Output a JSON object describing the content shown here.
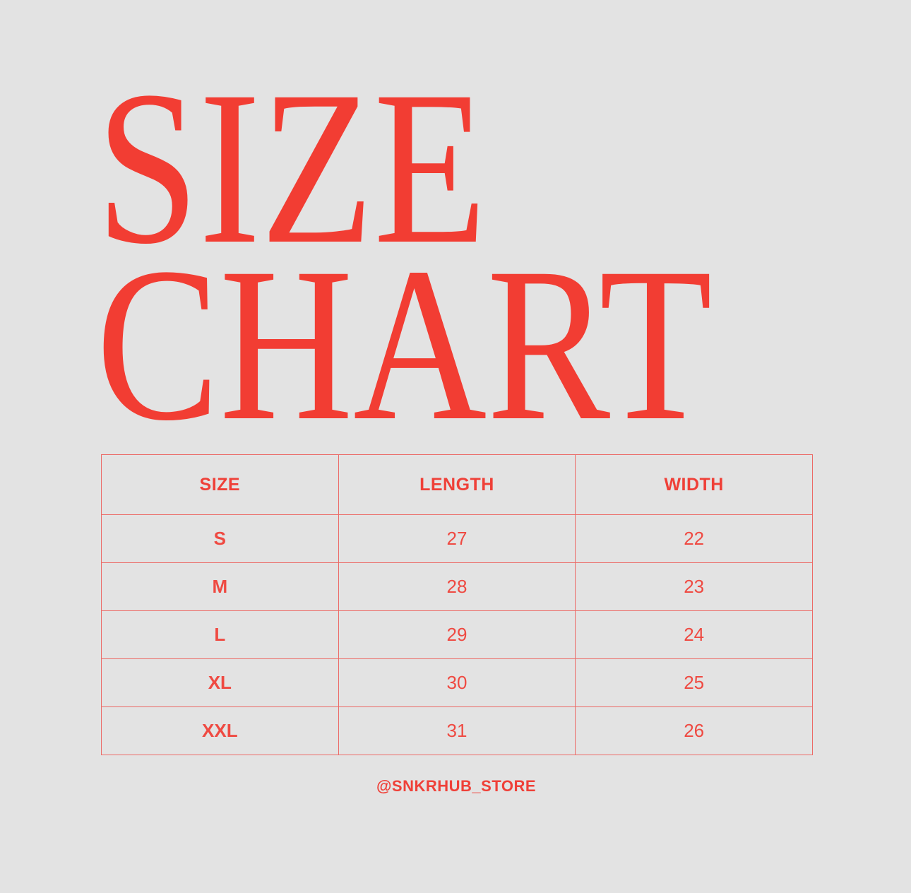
{
  "title": {
    "line1": "SIZE",
    "line2": "CHART"
  },
  "table": {
    "headers": [
      "SIZE",
      "LENGTH",
      "WIDTH"
    ],
    "rows": [
      {
        "size": "S",
        "length": "27",
        "width": "22"
      },
      {
        "size": "M",
        "length": "28",
        "width": "23"
      },
      {
        "size": "L",
        "length": "29",
        "width": "24"
      },
      {
        "size": "XL",
        "length": "30",
        "width": "25"
      },
      {
        "size": "XXL",
        "length": "31",
        "width": "26"
      }
    ]
  },
  "handle": "@SNKRHUB_STORE",
  "colors": {
    "accent": "#f23d33",
    "background": "#e3e3e3"
  }
}
